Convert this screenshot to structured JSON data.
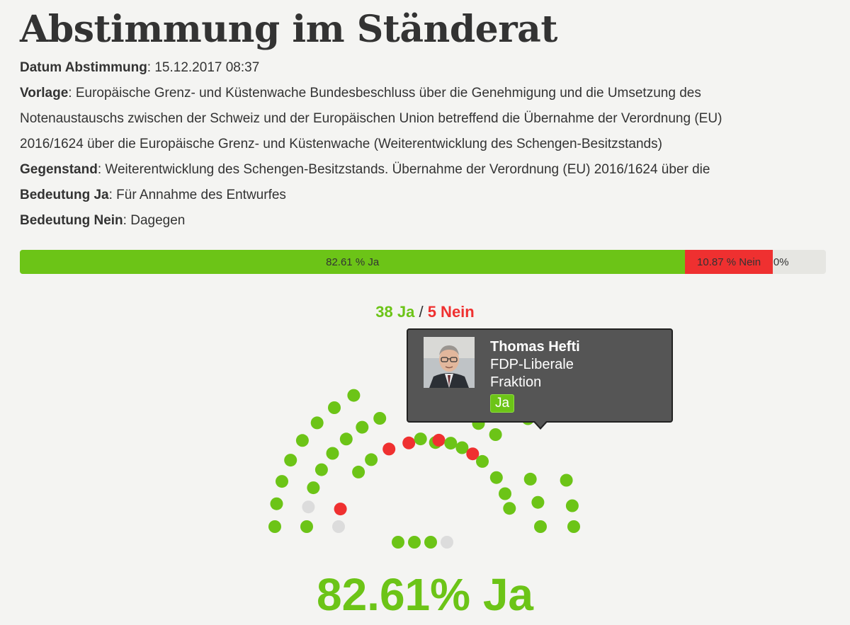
{
  "page": {
    "title": "Abstimmung im Ständerat"
  },
  "meta": {
    "datum_label": "Datum Abstimmung",
    "datum_value": ": 15.12.2017 08:37",
    "vorlage_label": "Vorlage",
    "vorlage_value_line1": ": Europäische Grenz- und Küstenwache Bundesbeschluss über die Genehmigung und die Umsetzung des",
    "vorlage_value_line2": "Notenaustauschs zwischen der Schweiz und der Europäischen Union betreffend die Übernahme der Verordnung (EU)",
    "vorlage_value_line3": "2016/1624 über die Europäische Grenz- und Küstenwache (Weiterentwicklung des Schengen-Besitzstands)",
    "gegenstand_label": "Gegenstand",
    "gegenstand_value": ": Weiterentwicklung des Schengen-Besitzstands. Übernahme der Verordnung (EU) 2016/1624 über die",
    "ja_label": "Bedeutung Ja",
    "ja_value": ": Für Annahme des Entwurfes",
    "nein_label": "Bedeutung Nein",
    "nein_value": ": Dagegen"
  },
  "result_bar": {
    "ja_label": "82.61 % Ja",
    "nein_label": "10.87 % Nein",
    "rest_label": "0%",
    "ja_percent": 82.61,
    "nein_percent": 10.87
  },
  "counts": {
    "ja": "38 Ja",
    "separator": "/",
    "nein": "5 Nein"
  },
  "tooltip": {
    "name": "Thomas Hefti",
    "party": "FDP-Liberale Fraktion",
    "vote": "Ja"
  },
  "big_result": "82.61% Ja",
  "colors": {
    "ja": "#6cc417",
    "nein": "#ef3030",
    "abwesend": "#dcdcdc",
    "tooltip_bg": "#555555"
  },
  "seats": {
    "arcs": [
      {
        "votes": [
          "ja",
          "ja",
          "ja",
          "ja",
          "ja",
          "ja",
          "ja",
          "ja"
        ]
      },
      {
        "votes": [
          "ja",
          "absent",
          "ja",
          "ja",
          "ja",
          "ja",
          "ja",
          "ja"
        ]
      },
      {
        "votes": [
          "absent",
          "nein",
          "ja",
          "ja",
          "nein",
          "nein",
          "ja"
        ]
      },
      {
        "votes": [
          "ja",
          "nein",
          "ja",
          "ja",
          "nein",
          "ja",
          "ja",
          "ja",
          "ja"
        ]
      },
      {
        "votes": [
          "ja",
          "ja",
          "ja",
          "ja",
          "ja",
          "ja",
          "ja",
          "ja",
          "ja",
          "ja"
        ]
      }
    ],
    "bottom_row": [
      "ja",
      "ja",
      "ja",
      "absent"
    ]
  }
}
